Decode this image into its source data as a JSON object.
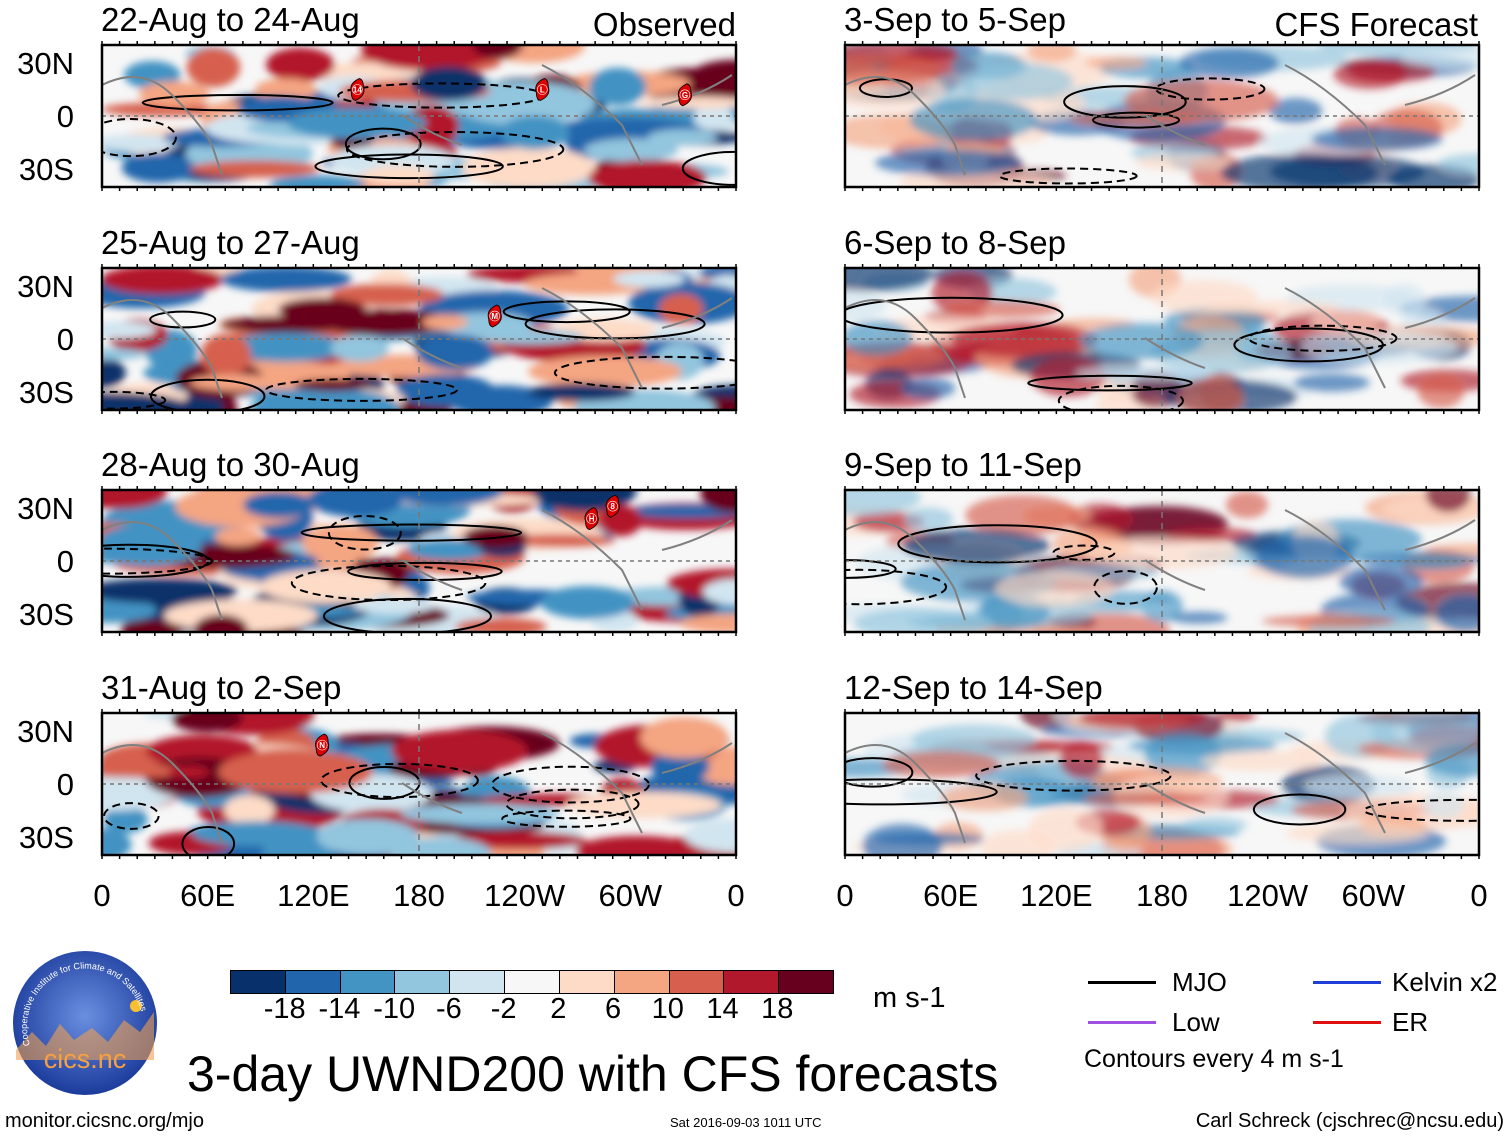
{
  "header": {
    "left_label": "Observed",
    "right_label": "CFS Forecast"
  },
  "panels_left": [
    {
      "title": "22-Aug to 24-Aug",
      "storms": [
        {
          "id": "14",
          "lon": 145,
          "lat": 15
        },
        {
          "id": "L",
          "lon": 250,
          "lat": 15
        },
        {
          "id": "G",
          "lon": 331,
          "lat": 12
        }
      ]
    },
    {
      "title": "25-Aug to 27-Aug",
      "storms": [
        {
          "id": "M",
          "lon": 223,
          "lat": 13
        }
      ]
    },
    {
      "title": "28-Aug to 30-Aug",
      "storms": [
        {
          "id": "H",
          "lon": 278,
          "lat": 24
        },
        {
          "id": "8",
          "lon": 290,
          "lat": 31
        }
      ]
    },
    {
      "title": "31-Aug to 2-Sep",
      "storms": [
        {
          "id": "N",
          "lon": 125,
          "lat": 22
        }
      ]
    }
  ],
  "panels_right": [
    {
      "title": "3-Sep to 5-Sep",
      "storms": []
    },
    {
      "title": "6-Sep to 8-Sep",
      "storms": []
    },
    {
      "title": "9-Sep to 11-Sep",
      "storms": []
    },
    {
      "title": "12-Sep to 14-Sep",
      "storms": []
    }
  ],
  "lat_ticks": [
    "30N",
    "0",
    "30S"
  ],
  "lon_ticks": [
    "0",
    "60E",
    "120E",
    "180",
    "120W",
    "60W",
    "0"
  ],
  "colorbar": {
    "colors": [
      "#08306b",
      "#2166ac",
      "#4393c3",
      "#92c5de",
      "#d1e5f0",
      "#f7f7f7",
      "#fddbc7",
      "#f4a582",
      "#d6604d",
      "#b2182b",
      "#67001f"
    ],
    "labels": [
      "-18",
      "-14",
      "-10",
      "-6",
      "-2",
      "2",
      "6",
      "10",
      "14",
      "18"
    ],
    "units": "m s-1"
  },
  "legend": {
    "items": [
      {
        "label": "MJO",
        "color": "#000000"
      },
      {
        "label": "Kelvin x2",
        "color": "#1f3fd8"
      },
      {
        "label": "Low",
        "color": "#a050e0"
      },
      {
        "label": "ER",
        "color": "#e01010"
      }
    ],
    "contour_note": "Contours every 4 m s-1"
  },
  "title": "3-day UWND200 with CFS forecasts",
  "footer": {
    "url": "monitor.cicsnc.org/mjo",
    "timestamp": "Sat 2016-09-03 1011 UTC",
    "credit": "Carl Schreck (cjschrec@ncsu.edu)"
  },
  "logo": {
    "text": "cics.nc",
    "ring_text": "Cooperative Institute for Climate and Satellites"
  }
}
